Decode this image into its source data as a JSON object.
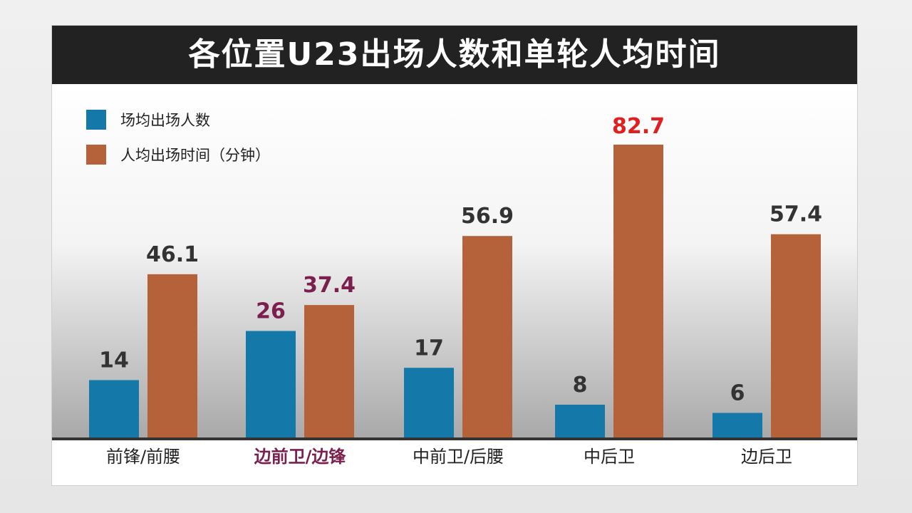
{
  "colors": {
    "title_bg": "#222222",
    "series_blue": "#1479a8",
    "series_orange": "#b5623a",
    "label_default": "#333333",
    "label_highlight": "#7a1f4e",
    "label_max": "#e02020"
  },
  "chart_data": {
    "type": "bar",
    "title": "各位置U23出场人数和单轮人均时间",
    "categories": [
      "前锋/前腰",
      "边前卫/边锋",
      "中前卫/后腰",
      "中后卫",
      "边后卫"
    ],
    "highlight_category": "边前卫/边锋",
    "series": [
      {
        "name": "场均出场人数",
        "values": [
          14,
          26,
          17,
          8,
          6
        ],
        "color": "#1479a8"
      },
      {
        "name": "人均出场时间（分钟）",
        "values": [
          46.1,
          37.4,
          56.9,
          82.7,
          57.4
        ],
        "color": "#b5623a"
      }
    ],
    "value_labels": {
      "series_0": [
        "14",
        "26",
        "17",
        "8",
        "6"
      ],
      "series_1": [
        "46.1",
        "37.4",
        "56.9",
        "82.7",
        "57.4"
      ]
    },
    "legend_placement": "top-left",
    "grid": false
  }
}
